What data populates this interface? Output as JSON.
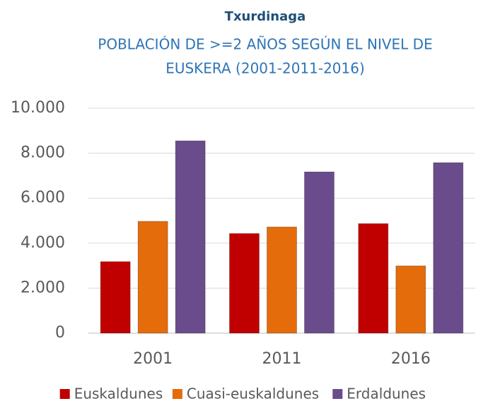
{
  "chart_data": {
    "type": "bar",
    "title": "Txurdinaga",
    "subtitle": [
      "POBLACIÓN DE >=2 AÑOS SEGÚN EL NIVEL DE",
      "EUSKERA  (2001-2011-2016)"
    ],
    "categories": [
      "2001",
      "2011",
      "2016"
    ],
    "series": [
      {
        "name": "Euskaldunes",
        "color": "#c00000",
        "values": [
          3180,
          4430,
          4870
        ]
      },
      {
        "name": "Cuasi-euskaldunes",
        "color": "#e46c0a",
        "values": [
          4970,
          4720,
          2990
        ]
      },
      {
        "name": "Erdaldunes",
        "color": "#6a4c8c",
        "values": [
          8550,
          7170,
          7580
        ]
      }
    ],
    "ylim": [
      0,
      10000
    ],
    "yticks": [
      0,
      {
        "value": 2000,
        "label": "2.000"
      },
      {
        "value": 4000,
        "label": "4.000"
      },
      {
        "value": 6000,
        "label": "6.000"
      },
      {
        "value": 8000,
        "label": "8.000"
      },
      {
        "value": 10000,
        "label": "10.000"
      }
    ],
    "grid": true,
    "legend": "bottom"
  }
}
